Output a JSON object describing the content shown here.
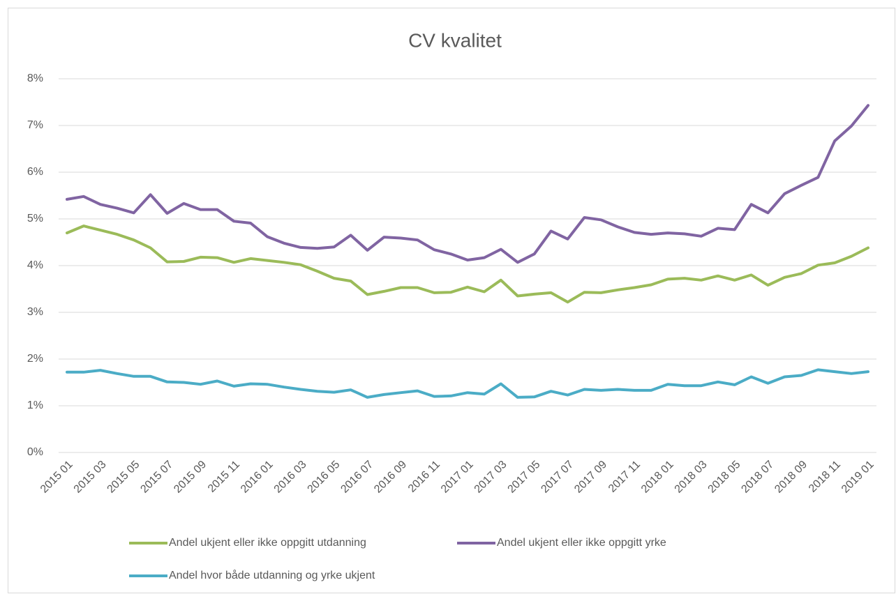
{
  "chart_data": {
    "type": "line",
    "title": "CV kvalitet",
    "categories": [
      "2015 01",
      null,
      "2015 03",
      null,
      "2015 05",
      null,
      "2015 07",
      null,
      "2015 09",
      null,
      "2015 11",
      null,
      "2016 01",
      null,
      "2016 03",
      null,
      "2016 05",
      null,
      "2016 07",
      null,
      "2016 09",
      null,
      "2016 11",
      null,
      "2017 01",
      null,
      "2017 03",
      null,
      "2017 05",
      null,
      "2017 07",
      null,
      "2017 09",
      null,
      "2017 11",
      null,
      "2018 01",
      null,
      "2018 03",
      null,
      "2018 05",
      null,
      "2018 07",
      null,
      "2018 09",
      null,
      "2018 11",
      null,
      "2019 01"
    ],
    "series": [
      {
        "name": "Andel ukjent eller ikke oppgitt utdanning",
        "color": "#9bbb59",
        "values": [
          4.7,
          4.85,
          4.76,
          4.67,
          4.55,
          4.38,
          4.08,
          4.09,
          4.18,
          4.17,
          4.07,
          4.15,
          4.11,
          4.07,
          4.02,
          3.88,
          3.73,
          3.67,
          3.38,
          3.45,
          3.53,
          3.53,
          3.42,
          3.43,
          3.54,
          3.44,
          3.69,
          3.35,
          3.39,
          3.42,
          3.22,
          3.43,
          3.42,
          3.48,
          3.53,
          3.59,
          3.71,
          3.73,
          3.69,
          3.78,
          3.69,
          3.8,
          3.58,
          3.75,
          3.83,
          4.01,
          4.06,
          4.2,
          4.38
        ]
      },
      {
        "name": "Andel ukjent eller ikke oppgitt yrke",
        "color": "#8064a2",
        "values": [
          5.42,
          5.48,
          5.31,
          5.23,
          5.13,
          5.52,
          5.12,
          5.33,
          5.2,
          5.2,
          4.95,
          4.91,
          4.62,
          4.48,
          4.39,
          4.37,
          4.4,
          4.65,
          4.33,
          4.61,
          4.59,
          4.55,
          4.34,
          4.25,
          4.12,
          4.17,
          4.35,
          4.07,
          4.25,
          4.74,
          4.57,
          5.03,
          4.98,
          4.83,
          4.71,
          4.67,
          4.7,
          4.68,
          4.63,
          4.8,
          4.77,
          5.31,
          5.13,
          5.54,
          5.72,
          5.89,
          6.67,
          6.99,
          7.43
        ]
      },
      {
        "name": "Andel hvor både utdanning og yrke ukjent",
        "color": "#4bacc6",
        "values": [
          1.72,
          1.72,
          1.76,
          1.69,
          1.63,
          1.63,
          1.51,
          1.5,
          1.46,
          1.53,
          1.42,
          1.47,
          1.46,
          1.4,
          1.35,
          1.31,
          1.29,
          1.34,
          1.18,
          1.24,
          1.28,
          1.32,
          1.2,
          1.21,
          1.28,
          1.25,
          1.47,
          1.18,
          1.19,
          1.31,
          1.23,
          1.35,
          1.33,
          1.35,
          1.33,
          1.33,
          1.46,
          1.43,
          1.43,
          1.51,
          1.45,
          1.62,
          1.48,
          1.62,
          1.65,
          1.77,
          1.73,
          1.69,
          1.73
        ]
      }
    ],
    "ylim": [
      0,
      8
    ],
    "yticks": [
      {
        "value": 0,
        "label": "0%"
      },
      {
        "value": 1,
        "label": "1%"
      },
      {
        "value": 2,
        "label": "2%"
      },
      {
        "value": 3,
        "label": "3%"
      },
      {
        "value": 4,
        "label": "4%"
      },
      {
        "value": 5,
        "label": "5%"
      },
      {
        "value": 6,
        "label": "6%"
      },
      {
        "value": 7,
        "label": "7%"
      },
      {
        "value": 8,
        "label": "8%"
      }
    ],
    "grid": true,
    "legend": "bottom"
  }
}
